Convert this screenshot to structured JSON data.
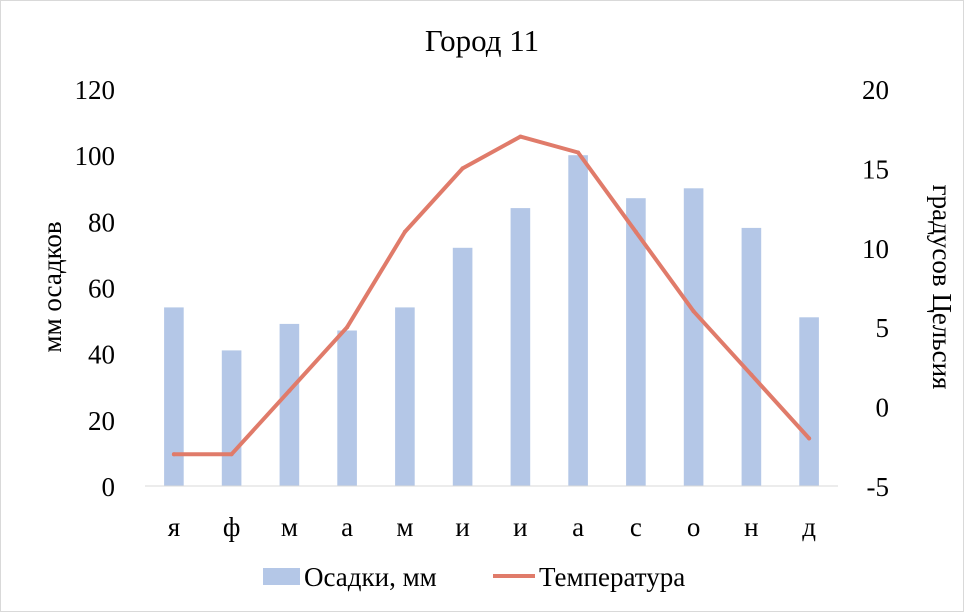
{
  "chart_data": {
    "type": "bar+line",
    "title": "Город 11",
    "categories": [
      "я",
      "ф",
      "м",
      "а",
      "м",
      "и",
      "и",
      "а",
      "с",
      "о",
      "н",
      "д"
    ],
    "series": [
      {
        "name": "Осадки, мм",
        "type": "bar",
        "axis": "left",
        "color": "#b4c7e7",
        "values": [
          54,
          41,
          49,
          47,
          54,
          72,
          84,
          100,
          87,
          90,
          78,
          51
        ]
      },
      {
        "name": "Температура",
        "type": "line",
        "axis": "right",
        "color": "#e07b6a",
        "values": [
          -3,
          -3,
          1,
          5,
          11,
          15,
          17,
          16,
          11,
          6,
          2,
          -2
        ]
      }
    ],
    "y_left": {
      "label": "мм осадков",
      "min": 0,
      "max": 120,
      "ticks": [
        0,
        20,
        40,
        60,
        80,
        100,
        120
      ]
    },
    "y_right": {
      "label": "градусов Цельсия",
      "min": -5,
      "max": 20,
      "ticks": [
        -5,
        0,
        5,
        10,
        15,
        20
      ]
    },
    "grid": false,
    "legend": "bottom"
  }
}
